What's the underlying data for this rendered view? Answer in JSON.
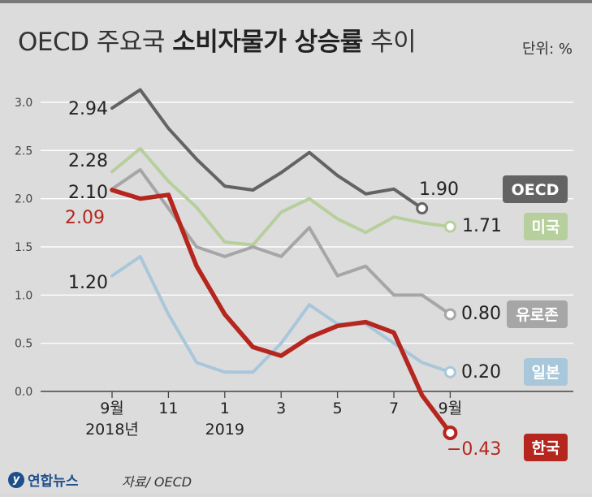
{
  "header": {
    "title_light": "OECD 주요국",
    "title_bold": "소비자물가 상승률",
    "title_tail": "추이",
    "unit": "단위: %"
  },
  "footer": {
    "logo_text": "연합뉴스",
    "source": "자료/ OECD"
  },
  "colors": {
    "OECD": "#636363",
    "미국": "#b7cf9c",
    "유로존": "#a6a6a6",
    "일본": "#a9c7da",
    "한국": "#b5261e"
  },
  "chart_data": {
    "type": "line",
    "title": "OECD 주요국 소비자물가 상승률 추이",
    "unit": "%",
    "x": [
      "2018-09",
      "2018-10",
      "2018-11",
      "2018-12",
      "2019-01",
      "2019-02",
      "2019-03",
      "2019-04",
      "2019-05",
      "2019-06",
      "2019-07",
      "2019-08",
      "2019-09"
    ],
    "x_tick_labels": [
      {
        "index": 0,
        "label": "9월",
        "sub": "2018년"
      },
      {
        "index": 2,
        "label": "11",
        "sub": ""
      },
      {
        "index": 4,
        "label": "1",
        "sub": "2019"
      },
      {
        "index": 6,
        "label": "3",
        "sub": ""
      },
      {
        "index": 8,
        "label": "5",
        "sub": ""
      },
      {
        "index": 10,
        "label": "7",
        "sub": ""
      },
      {
        "index": 12,
        "label": "9월",
        "sub": ""
      }
    ],
    "ylim": [
      0,
      3.0
    ],
    "y_ticks": [
      "0.0",
      "0.5",
      "1.0",
      "1.5",
      "2.0",
      "2.5",
      "3.0"
    ],
    "grid": true,
    "series": [
      {
        "name": "OECD",
        "values": [
          2.94,
          3.13,
          2.73,
          2.41,
          2.13,
          2.09,
          2.27,
          2.48,
          2.24,
          2.05,
          2.1,
          1.9,
          null
        ],
        "start_label": "2.94",
        "end_label": "1.90"
      },
      {
        "name": "미국",
        "values": [
          2.28,
          2.52,
          2.18,
          1.91,
          1.55,
          1.52,
          1.86,
          2.0,
          1.79,
          1.65,
          1.81,
          1.75,
          1.71
        ],
        "start_label": "2.28",
        "end_label": "1.71"
      },
      {
        "name": "유로존",
        "values": [
          2.1,
          2.3,
          1.9,
          1.5,
          1.4,
          1.5,
          1.4,
          1.7,
          1.2,
          1.3,
          1.0,
          1.0,
          0.8
        ],
        "start_label": "2.10",
        "end_label": "0.80"
      },
      {
        "name": "일본",
        "values": [
          1.2,
          1.4,
          0.8,
          0.3,
          0.2,
          0.2,
          0.5,
          0.9,
          0.7,
          0.7,
          0.5,
          0.3,
          0.2
        ],
        "start_label": "1.20",
        "end_label": "0.20"
      },
      {
        "name": "한국",
        "values": [
          2.09,
          2.0,
          2.04,
          1.3,
          0.8,
          0.46,
          0.37,
          0.56,
          0.68,
          0.72,
          0.61,
          -0.04,
          -0.43
        ],
        "start_label": "2.09",
        "end_label": "−0.43"
      }
    ]
  }
}
